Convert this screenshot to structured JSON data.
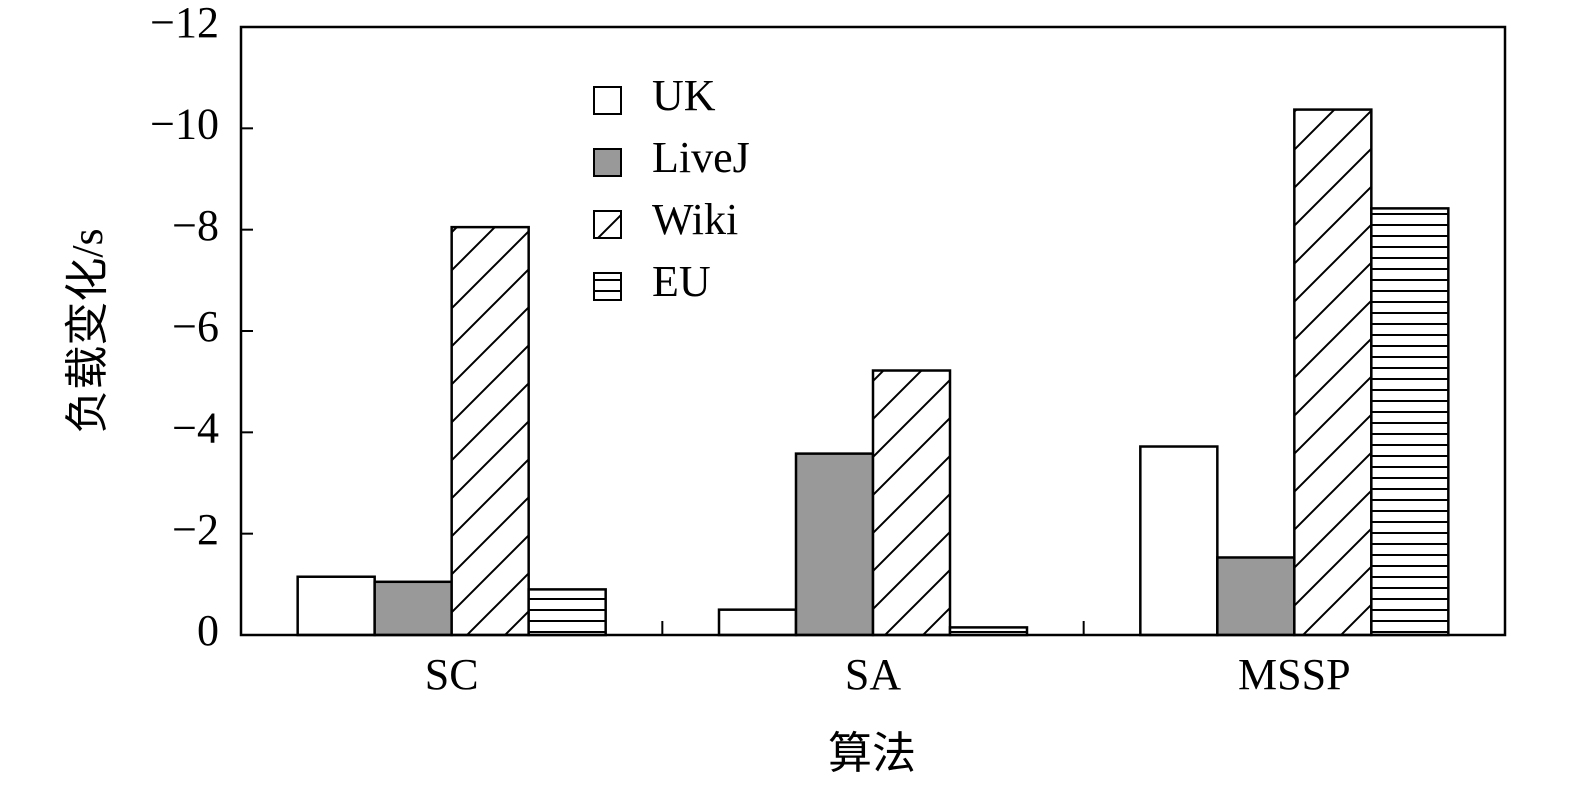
{
  "chart_data": {
    "type": "bar",
    "x_label": "算法",
    "y_label": "负载变化/s",
    "categories": [
      "SC",
      "SA",
      "MSSP"
    ],
    "series": [
      {
        "name": "UK",
        "color": "#ffffff",
        "hatch": "none",
        "values": [
          -1.15,
          -0.5,
          -3.72
        ]
      },
      {
        "name": "LiveJ",
        "color": "#999999",
        "hatch": "none",
        "values": [
          -1.05,
          -3.58,
          -1.53
        ]
      },
      {
        "name": "Wiki",
        "color": "#ffffff",
        "hatch": "diagonal",
        "values": [
          -8.05,
          -5.22,
          -10.37
        ]
      },
      {
        "name": "EU",
        "color": "#ffffff",
        "hatch": "horizontal",
        "values": [
          -0.9,
          -0.15,
          -8.42
        ]
      }
    ],
    "ylim": [
      0,
      -12
    ],
    "yticks": [
      0,
      {
        "value": -2,
        "label": "−2"
      },
      {
        "value": -4,
        "label": "−4"
      },
      {
        "value": -6,
        "label": "−6"
      },
      {
        "value": -8,
        "label": "−8"
      },
      {
        "value": -10,
        "label": "−10"
      },
      {
        "value": -12,
        "label": "−12"
      }
    ],
    "grid": false,
    "legend": "upper left"
  }
}
